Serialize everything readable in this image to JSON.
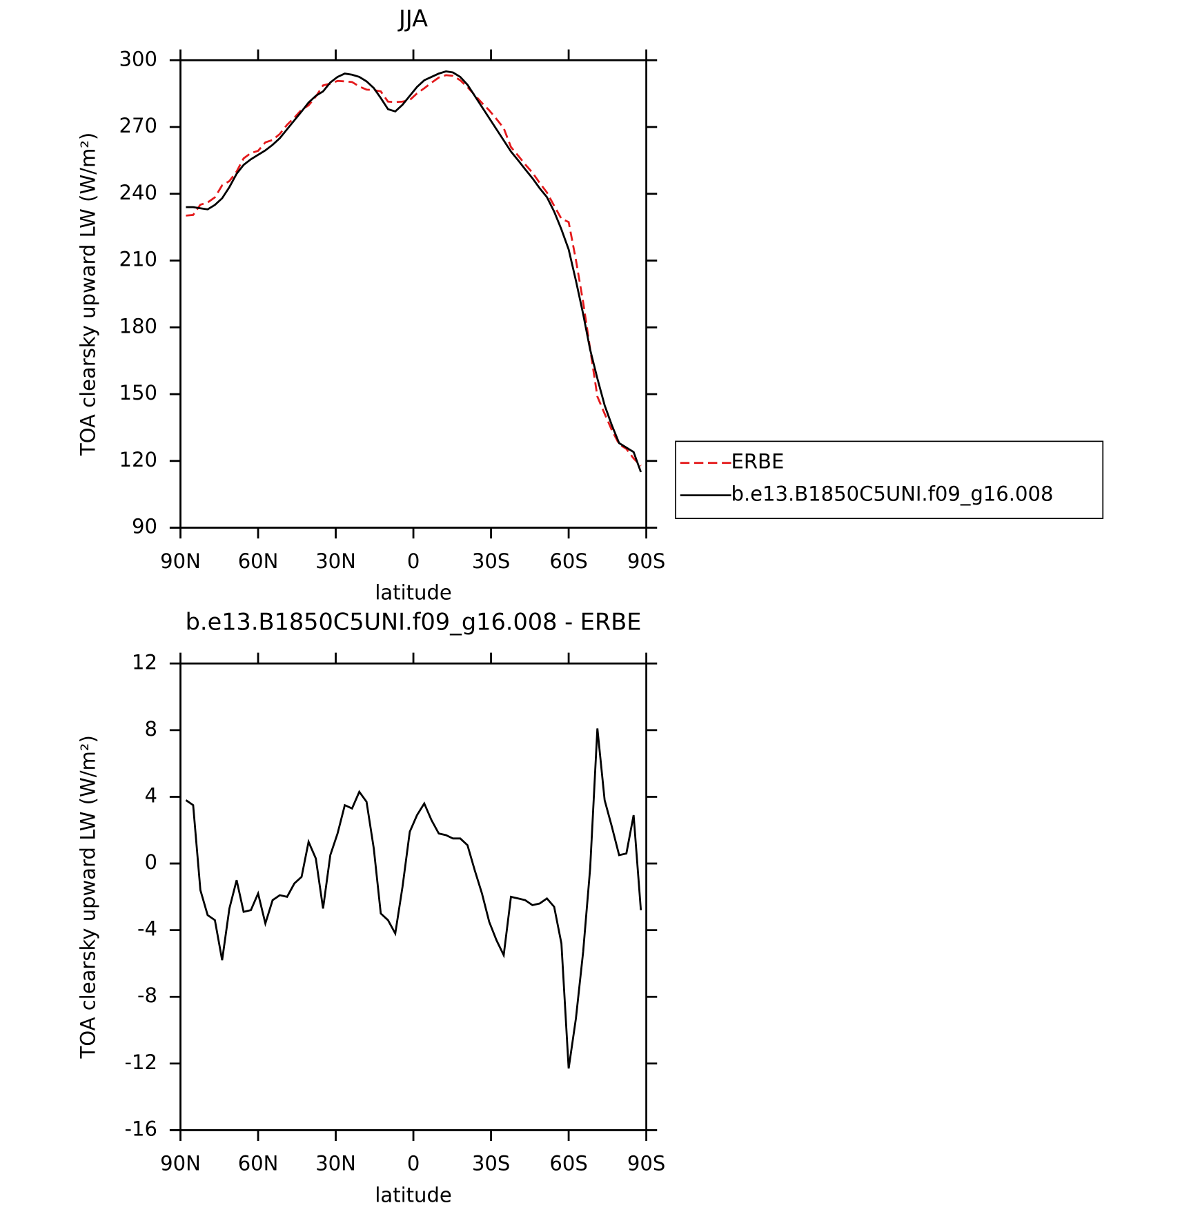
{
  "chart_data": [
    {
      "type": "line",
      "title": "JJA",
      "xlabel": "latitude",
      "ylabel": "TOA clearsky upward LW (W/m²)",
      "x": [
        87.9,
        85.1,
        82.3,
        79.5,
        76.7,
        73.9,
        71.1,
        68.3,
        65.6,
        62.8,
        60.0,
        57.2,
        54.4,
        51.6,
        48.8,
        46.0,
        43.2,
        40.5,
        37.7,
        34.9,
        32.1,
        29.3,
        26.5,
        23.7,
        20.9,
        18.1,
        15.3,
        12.6,
        9.8,
        7.0,
        4.2,
        1.4,
        -1.4,
        -4.2,
        -7.0,
        -9.8,
        -12.6,
        -15.3,
        -18.1,
        -20.9,
        -23.7,
        -26.5,
        -29.3,
        -32.1,
        -34.9,
        -37.7,
        -40.5,
        -43.2,
        -46.0,
        -48.8,
        -51.6,
        -54.4,
        -57.2,
        -60.0,
        -62.8,
        -65.6,
        -68.3,
        -71.1,
        -73.9,
        -76.7,
        -79.5,
        -82.3,
        -85.1,
        -87.9
      ],
      "series": [
        {
          "name": "ERBE",
          "color": "#e41a1c",
          "dash": true,
          "values": [
            230.2,
            230.5,
            235.1,
            236.1,
            238.4,
            243.8,
            245.7,
            250,
            255.9,
            258.3,
            259.3,
            263.1,
            264.2,
            266.9,
            271,
            274.2,
            277.8,
            279.7,
            283.7,
            288.7,
            289.5,
            290.7,
            290.5,
            290.2,
            288.2,
            286.8,
            286.6,
            286,
            281.4,
            281.2,
            281.4,
            282.1,
            285.1,
            287.4,
            289.9,
            292.2,
            293.3,
            293,
            291,
            287.9,
            284.4,
            280.8,
            277.5,
            273.6,
            269.5,
            261,
            257.1,
            253.2,
            249.5,
            244.9,
            240.6,
            234.6,
            228.8,
            227.3,
            210.3,
            191.3,
            170.3,
            148.9,
            141.2,
            133.8,
            127.5,
            125.4,
            121.1,
            117.8
          ]
        },
        {
          "name": "b.e13.B1850C5UNI.f09_g16.008",
          "color": "#000000",
          "dash": false,
          "values": [
            234,
            234,
            233.5,
            233,
            235,
            238,
            243,
            249,
            253,
            255.5,
            257.5,
            259.5,
            262,
            265,
            269,
            273,
            277,
            281,
            284,
            286,
            290,
            292.5,
            294,
            293.5,
            292.5,
            290.5,
            287.5,
            283,
            278,
            277,
            280,
            284,
            288,
            291,
            292.5,
            294,
            295,
            294.5,
            292.5,
            289,
            284,
            279,
            274,
            269,
            264,
            259,
            255,
            251,
            247,
            242.5,
            238.5,
            232,
            224,
            215,
            201,
            186,
            170,
            157,
            145,
            136,
            128,
            126,
            124,
            115
          ]
        }
      ],
      "xlim": [
        90,
        -90
      ],
      "xticks": [
        {
          "value": 90,
          "label": "90N"
        },
        {
          "value": 60,
          "label": "60N"
        },
        {
          "value": 30,
          "label": "30N"
        },
        0,
        {
          "value": -30,
          "label": "30S"
        },
        {
          "value": -60,
          "label": "60S"
        },
        {
          "value": -90,
          "label": "90S"
        }
      ],
      "ylim": [
        90,
        300
      ],
      "yticks": [
        90,
        120,
        150,
        180,
        210,
        240,
        270,
        300
      ],
      "legend": "right"
    },
    {
      "type": "line",
      "title": "b.e13.B1850C5UNI.f09_g16.008 - ERBE",
      "xlabel": "latitude",
      "ylabel": "TOA clearsky upward LW (W/m²)",
      "x": [
        87.9,
        85.1,
        82.3,
        79.5,
        76.7,
        73.9,
        71.1,
        68.3,
        65.6,
        62.8,
        60.0,
        57.2,
        54.4,
        51.6,
        48.8,
        46.0,
        43.2,
        40.5,
        37.7,
        34.9,
        32.1,
        29.3,
        26.5,
        23.7,
        20.9,
        18.1,
        15.3,
        12.6,
        9.8,
        7.0,
        4.2,
        1.4,
        -1.4,
        -4.2,
        -7.0,
        -9.8,
        -12.6,
        -15.3,
        -18.1,
        -20.9,
        -23.7,
        -26.5,
        -29.3,
        -32.1,
        -34.9,
        -37.7,
        -40.5,
        -43.2,
        -46.0,
        -48.8,
        -51.6,
        -54.4,
        -57.2,
        -60.0,
        -62.8,
        -65.6,
        -68.3,
        -71.1,
        -73.9,
        -76.7,
        -79.5,
        -82.3,
        -85.1,
        -87.9
      ],
      "series": [
        {
          "color": "#000000",
          "dash": false,
          "values": [
            3.8,
            3.5,
            -1.6,
            -3.1,
            -3.4,
            -5.8,
            -2.7,
            -1,
            -2.9,
            -2.8,
            -1.8,
            -3.6,
            -2.2,
            -1.9,
            -2.0,
            -1.2,
            -0.8,
            1.3,
            0.3,
            -2.7,
            0.5,
            1.8,
            3.5,
            3.3,
            4.3,
            3.7,
            0.9,
            -3.0,
            -3.4,
            -4.2,
            -1.4,
            1.9,
            2.9,
            3.6,
            2.6,
            1.8,
            1.7,
            1.5,
            1.5,
            1.1,
            -0.4,
            -1.8,
            -3.5,
            -4.6,
            -5.5,
            -2.0,
            -2.1,
            -2.2,
            -2.5,
            -2.4,
            -2.1,
            -2.6,
            -4.8,
            -12.3,
            -9.3,
            -5.3,
            -0.3,
            8.1,
            3.8,
            2.2,
            0.5,
            0.6,
            2.9,
            -2.8
          ]
        }
      ],
      "xlim": [
        90,
        -90
      ],
      "xticks": [
        {
          "value": 90,
          "label": "90N"
        },
        {
          "value": 60,
          "label": "60N"
        },
        {
          "value": 30,
          "label": "30N"
        },
        0,
        {
          "value": -30,
          "label": "30S"
        },
        {
          "value": -60,
          "label": "60S"
        },
        {
          "value": -90,
          "label": "90S"
        }
      ],
      "ylim": [
        -16,
        12
      ],
      "yticks": [
        -16,
        -12,
        -8,
        -4,
        0,
        4,
        8,
        12
      ]
    }
  ]
}
